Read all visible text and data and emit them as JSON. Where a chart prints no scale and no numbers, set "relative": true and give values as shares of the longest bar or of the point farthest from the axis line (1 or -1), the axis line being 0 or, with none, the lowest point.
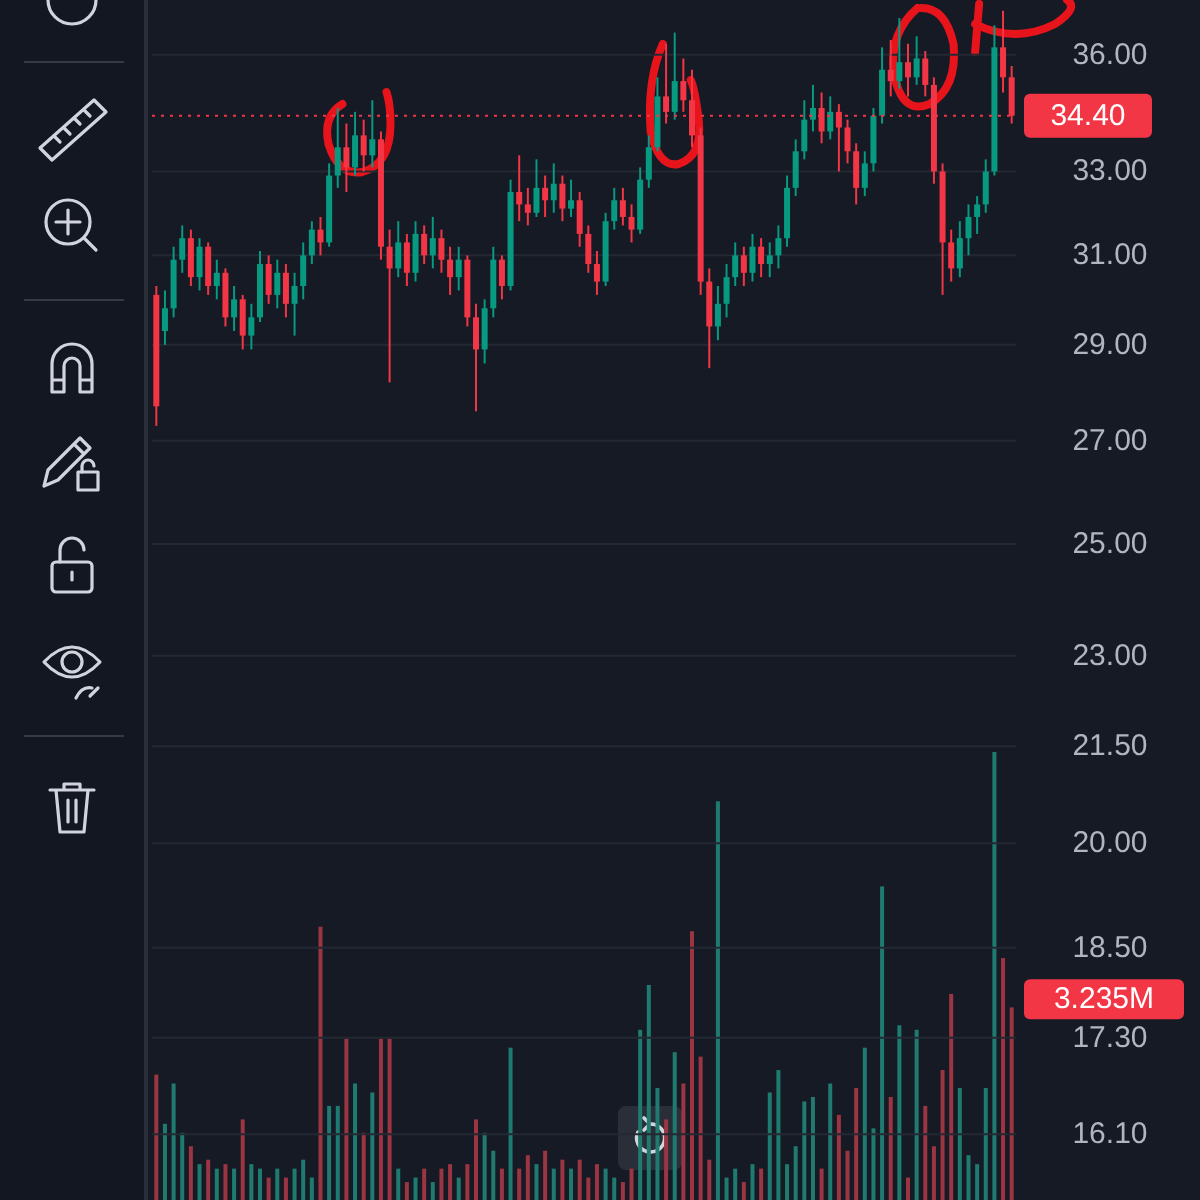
{
  "chart_data": [
    {
      "type": "candlestick",
      "log": true,
      "grid": "y",
      "tick_labels": "y",
      "categories": [
        null,
        null,
        null,
        null,
        null,
        null,
        null,
        null,
        null,
        null,
        null,
        null,
        null,
        null,
        null,
        null,
        null,
        null,
        null,
        null,
        null,
        null,
        null,
        null,
        null,
        null,
        null,
        null,
        null,
        null,
        null,
        null,
        null,
        null,
        null,
        null,
        null,
        null,
        null,
        null,
        null,
        null,
        null,
        null,
        null,
        null,
        null,
        null,
        null,
        null,
        null,
        null,
        null,
        null,
        null,
        null,
        null,
        null,
        null,
        null,
        null,
        null,
        null,
        null,
        null,
        null,
        null,
        null,
        null,
        null,
        null,
        null,
        null,
        null,
        null,
        null,
        null,
        null,
        null,
        null,
        null,
        null,
        null,
        null,
        null,
        null,
        null,
        null,
        null,
        null,
        null,
        null,
        null,
        null,
        null,
        null,
        null,
        null,
        null,
        null
      ],
      "ohlc": [
        [
          30.1,
          30.3,
          27.3,
          27.7
        ],
        [
          29.3,
          30.2,
          29.0,
          29.8
        ],
        [
          29.8,
          31.2,
          29.6,
          30.9
        ],
        [
          30.9,
          31.7,
          30.6,
          31.4
        ],
        [
          31.4,
          31.6,
          30.3,
          30.5
        ],
        [
          30.5,
          31.4,
          30.2,
          31.2
        ],
        [
          31.2,
          31.3,
          30.1,
          30.3
        ],
        [
          30.3,
          30.9,
          30.0,
          30.6
        ],
        [
          30.6,
          30.7,
          29.4,
          29.6
        ],
        [
          29.6,
          30.3,
          29.3,
          30.0
        ],
        [
          30.0,
          30.1,
          28.9,
          29.2
        ],
        [
          29.2,
          29.9,
          28.9,
          29.6
        ],
        [
          29.6,
          31.1,
          29.5,
          30.8
        ],
        [
          30.8,
          31.0,
          29.9,
          30.1
        ],
        [
          30.1,
          30.9,
          29.8,
          30.6
        ],
        [
          30.6,
          30.8,
          29.6,
          29.9
        ],
        [
          29.9,
          30.6,
          29.2,
          30.3
        ],
        [
          30.3,
          31.3,
          30.0,
          31.0
        ],
        [
          31.0,
          31.8,
          30.8,
          31.6
        ],
        [
          31.6,
          31.9,
          31.0,
          31.3
        ],
        [
          31.3,
          33.2,
          31.2,
          32.9
        ],
        [
          32.9,
          34.6,
          32.6,
          33.6
        ],
        [
          33.6,
          34.2,
          32.5,
          33.1
        ],
        [
          33.1,
          34.5,
          32.9,
          33.9
        ],
        [
          33.9,
          34.3,
          33.0,
          33.4
        ],
        [
          33.4,
          34.8,
          33.1,
          33.8
        ],
        [
          33.8,
          34.0,
          30.9,
          31.2
        ],
        [
          31.2,
          31.6,
          28.2,
          30.7
        ],
        [
          30.7,
          31.8,
          30.5,
          31.3
        ],
        [
          31.3,
          31.5,
          30.3,
          30.6
        ],
        [
          30.6,
          31.8,
          30.4,
          31.5
        ],
        [
          31.5,
          31.7,
          30.8,
          31.0
        ],
        [
          31.0,
          31.9,
          30.7,
          31.4
        ],
        [
          31.4,
          31.6,
          30.6,
          30.9
        ],
        [
          30.9,
          31.2,
          30.1,
          30.5
        ],
        [
          30.5,
          31.2,
          30.2,
          30.9
        ],
        [
          30.9,
          31.0,
          29.4,
          29.6
        ],
        [
          29.6,
          29.9,
          27.6,
          28.9
        ],
        [
          28.9,
          30.0,
          28.6,
          29.8
        ],
        [
          29.8,
          31.2,
          29.6,
          30.9
        ],
        [
          30.9,
          31.0,
          30.0,
          30.3
        ],
        [
          30.3,
          32.8,
          30.2,
          32.5
        ],
        [
          32.5,
          33.4,
          31.8,
          32.2
        ],
        [
          32.2,
          32.6,
          31.7,
          32.0
        ],
        [
          32.0,
          33.3,
          31.9,
          32.6
        ],
        [
          32.6,
          32.9,
          31.9,
          32.3
        ],
        [
          32.3,
          33.2,
          32.0,
          32.7
        ],
        [
          32.7,
          32.9,
          31.8,
          32.1
        ],
        [
          32.1,
          32.8,
          31.9,
          32.3
        ],
        [
          32.3,
          32.5,
          31.2,
          31.5
        ],
        [
          31.5,
          31.7,
          30.6,
          30.8
        ],
        [
          30.8,
          31.1,
          30.1,
          30.4
        ],
        [
          30.4,
          32.0,
          30.3,
          31.8
        ],
        [
          31.8,
          32.6,
          31.6,
          32.3
        ],
        [
          32.3,
          32.6,
          31.7,
          31.9
        ],
        [
          31.9,
          32.2,
          31.3,
          31.6
        ],
        [
          31.6,
          33.1,
          31.5,
          32.8
        ],
        [
          32.8,
          33.9,
          32.6,
          33.6
        ],
        [
          33.6,
          35.4,
          33.5,
          34.9
        ],
        [
          34.9,
          36.3,
          34.2,
          34.5
        ],
        [
          34.5,
          36.6,
          34.3,
          35.3
        ],
        [
          35.3,
          35.9,
          34.5,
          34.8
        ],
        [
          34.8,
          35.6,
          33.6,
          33.9
        ],
        [
          33.9,
          34.1,
          30.1,
          30.4
        ],
        [
          30.4,
          30.7,
          28.5,
          29.4
        ],
        [
          29.4,
          30.3,
          29.1,
          29.9
        ],
        [
          29.9,
          30.8,
          29.6,
          30.5
        ],
        [
          30.5,
          31.3,
          30.3,
          31.0
        ],
        [
          31.0,
          31.2,
          30.3,
          30.6
        ],
        [
          30.6,
          31.5,
          30.4,
          31.2
        ],
        [
          31.2,
          31.4,
          30.5,
          30.8
        ],
        [
          30.8,
          31.3,
          30.5,
          31.0
        ],
        [
          31.0,
          31.7,
          30.7,
          31.4
        ],
        [
          31.4,
          32.9,
          31.2,
          32.6
        ],
        [
          32.6,
          33.8,
          32.4,
          33.5
        ],
        [
          33.5,
          34.8,
          33.3,
          34.3
        ],
        [
          34.3,
          35.2,
          34.0,
          34.6
        ],
        [
          34.6,
          35.0,
          33.7,
          34.0
        ],
        [
          34.0,
          34.9,
          33.8,
          34.5
        ],
        [
          34.5,
          34.7,
          33.0,
          34.1
        ],
        [
          34.1,
          34.3,
          33.2,
          33.5
        ],
        [
          33.5,
          33.7,
          32.2,
          32.6
        ],
        [
          32.6,
          33.5,
          32.4,
          33.2
        ],
        [
          33.2,
          34.6,
          33.0,
          34.4
        ],
        [
          34.4,
          36.2,
          34.2,
          35.6
        ],
        [
          35.6,
          36.4,
          34.9,
          35.3
        ],
        [
          35.3,
          37.0,
          35.1,
          35.8
        ],
        [
          35.8,
          36.3,
          34.9,
          35.4
        ],
        [
          35.4,
          36.5,
          35.2,
          35.9
        ],
        [
          35.9,
          36.1,
          34.9,
          35.2
        ],
        [
          35.2,
          35.4,
          32.7,
          33.0
        ],
        [
          33.0,
          33.2,
          30.1,
          31.3
        ],
        [
          31.3,
          31.6,
          30.4,
          30.7
        ],
        [
          30.7,
          31.8,
          30.5,
          31.4
        ],
        [
          31.4,
          32.2,
          31.0,
          31.9
        ],
        [
          31.9,
          32.4,
          31.5,
          32.2
        ],
        [
          32.2,
          33.3,
          32.0,
          33.0
        ],
        [
          33.0,
          36.8,
          32.9,
          36.2
        ],
        [
          36.2,
          37.2,
          35.0,
          35.4
        ],
        [
          35.4,
          35.7,
          34.2,
          34.4
        ]
      ],
      "colors": [
        "#f23645",
        "#089981",
        "#089981",
        "#089981",
        "#f23645",
        "#089981",
        "#f23645",
        "#089981",
        "#f23645",
        "#089981",
        "#f23645",
        "#089981",
        "#089981",
        "#f23645",
        "#089981",
        "#f23645",
        "#089981",
        "#089981",
        "#089981",
        "#f23645",
        "#089981",
        "#089981",
        "#f23645",
        "#089981",
        "#f23645",
        "#089981",
        "#f23645",
        "#f23645",
        "#089981",
        "#f23645",
        "#089981",
        "#f23645",
        "#089981",
        "#f23645",
        "#f23645",
        "#089981",
        "#f23645",
        "#f23645",
        "#089981",
        "#089981",
        "#f23645",
        "#089981",
        "#f23645",
        "#f23645",
        "#089981",
        "#f23645",
        "#089981",
        "#f23645",
        "#089981",
        "#f23645",
        "#f23645",
        "#f23645",
        "#089981",
        "#089981",
        "#f23645",
        "#f23645",
        "#089981",
        "#089981",
        "#089981",
        "#f23645",
        "#089981",
        "#f23645",
        "#f23645",
        "#f23645",
        "#f23645",
        "#089981",
        "#089981",
        "#089981",
        "#f23645",
        "#089981",
        "#f23645",
        "#089981",
        "#089981",
        "#089981",
        "#089981",
        "#089981",
        "#089981",
        "#f23645",
        "#089981",
        "#f23645",
        "#f23645",
        "#f23645",
        "#089981",
        "#089981",
        "#089981",
        "#f23645",
        "#089981",
        "#f23645",
        "#089981",
        "#f23645",
        "#f23645",
        "#f23645",
        "#f23645",
        "#089981",
        "#089981",
        "#089981",
        "#089981",
        "#089981",
        "#f23645",
        "#f23645"
      ],
      "ylim": [
        15.33,
        37.5
      ],
      "yticks": [
        {
          "value": 36,
          "label": "36.00"
        },
        {
          "value": 33,
          "label": "33.00"
        },
        {
          "value": 31,
          "label": "31.00"
        },
        {
          "value": 29,
          "label": "29.00"
        },
        {
          "value": 27,
          "label": "27.00"
        },
        {
          "value": 25,
          "label": "25.00"
        },
        {
          "value": 23,
          "label": "23.00"
        },
        {
          "value": 21.5,
          "label": "21.50"
        },
        {
          "value": 20,
          "label": "20.00"
        },
        {
          "value": 18.5,
          "label": "18.50"
        },
        {
          "value": 17.3,
          "label": "17.30"
        },
        {
          "value": 16.1,
          "label": "16.10"
        }
      ],
      "ref_lines": [
        {
          "axis": "y",
          "value": 34.4,
          "label": "34.40",
          "color": "#f23645",
          "line_style": "dotted"
        }
      ]
    },
    {
      "type": "bar",
      "relative": true,
      "categories": [
        null,
        null,
        null,
        null,
        null,
        null,
        null,
        null,
        null,
        null,
        null,
        null,
        null,
        null,
        null,
        null,
        null,
        null,
        null,
        null,
        null,
        null,
        null,
        null,
        null,
        null,
        null,
        null,
        null,
        null,
        null,
        null,
        null,
        null,
        null,
        null,
        null,
        null,
        null,
        null,
        null,
        null,
        null,
        null,
        null,
        null,
        null,
        null,
        null,
        null,
        null,
        null,
        null,
        null,
        null,
        null,
        null,
        null,
        null,
        null,
        null,
        null,
        null,
        null,
        null,
        null,
        null,
        null,
        null,
        null,
        null,
        null,
        null,
        null,
        null,
        null,
        null,
        null,
        null,
        null,
        null,
        null,
        null,
        null,
        null,
        null,
        null,
        null,
        null,
        null,
        null,
        null,
        null,
        null,
        null,
        null,
        null,
        null,
        null,
        null
      ],
      "values": [
        0.28,
        0.17,
        0.26,
        0.15,
        0.12,
        0.08,
        0.09,
        0.07,
        0.08,
        0.07,
        0.18,
        0.08,
        0.07,
        0.05,
        0.07,
        0.05,
        0.07,
        0.09,
        0.05,
        0.61,
        0.21,
        0.21,
        0.36,
        0.26,
        0.15,
        0.24,
        0.36,
        0.36,
        0.07,
        0.04,
        0.05,
        0.07,
        0.04,
        0.07,
        0.08,
        0.05,
        0.08,
        0.18,
        0.15,
        0.11,
        0.07,
        0.34,
        0.07,
        0.1,
        0.08,
        0.11,
        0.07,
        0.09,
        0.07,
        0.09,
        0.05,
        0.08,
        0.07,
        0.05,
        0.04,
        0.07,
        0.38,
        0.48,
        0.25,
        0.18,
        0.33,
        0.26,
        0.6,
        0.32,
        0.09,
        0.89,
        0.05,
        0.07,
        0.04,
        0.08,
        0.07,
        0.24,
        0.29,
        0.08,
        0.12,
        0.22,
        0.23,
        0.07,
        0.26,
        0.19,
        0.11,
        0.25,
        0.34,
        0.16,
        0.7,
        0.23,
        0.39,
        0.05,
        0.38,
        0.21,
        0.12,
        0.29,
        0.46,
        0.25,
        0.1,
        0.08,
        0.25,
        1,
        0.54,
        0.43
      ],
      "colors": [
        "#9b3541",
        "#1f7a70",
        "#1f7a70",
        "#1f7a70",
        "#9b3541",
        "#1f7a70",
        "#9b3541",
        "#1f7a70",
        "#9b3541",
        "#1f7a70",
        "#9b3541",
        "#1f7a70",
        "#1f7a70",
        "#9b3541",
        "#1f7a70",
        "#9b3541",
        "#1f7a70",
        "#1f7a70",
        "#1f7a70",
        "#9b3541",
        "#1f7a70",
        "#1f7a70",
        "#9b3541",
        "#1f7a70",
        "#9b3541",
        "#1f7a70",
        "#9b3541",
        "#9b3541",
        "#1f7a70",
        "#9b3541",
        "#1f7a70",
        "#9b3541",
        "#1f7a70",
        "#9b3541",
        "#9b3541",
        "#1f7a70",
        "#9b3541",
        "#9b3541",
        "#1f7a70",
        "#1f7a70",
        "#9b3541",
        "#1f7a70",
        "#9b3541",
        "#9b3541",
        "#1f7a70",
        "#9b3541",
        "#1f7a70",
        "#9b3541",
        "#1f7a70",
        "#9b3541",
        "#9b3541",
        "#9b3541",
        "#1f7a70",
        "#1f7a70",
        "#9b3541",
        "#9b3541",
        "#1f7a70",
        "#1f7a70",
        "#1f7a70",
        "#9b3541",
        "#1f7a70",
        "#9b3541",
        "#9b3541",
        "#9b3541",
        "#9b3541",
        "#1f7a70",
        "#1f7a70",
        "#1f7a70",
        "#9b3541",
        "#1f7a70",
        "#9b3541",
        "#1f7a70",
        "#1f7a70",
        "#1f7a70",
        "#1f7a70",
        "#1f7a70",
        "#1f7a70",
        "#9b3541",
        "#1f7a70",
        "#9b3541",
        "#9b3541",
        "#9b3541",
        "#1f7a70",
        "#1f7a70",
        "#1f7a70",
        "#9b3541",
        "#1f7a70",
        "#9b3541",
        "#1f7a70",
        "#9b3541",
        "#9b3541",
        "#9b3541",
        "#9b3541",
        "#1f7a70",
        "#1f7a70",
        "#1f7a70",
        "#1f7a70",
        "#1f7a70",
        "#9b3541",
        "#9b3541"
      ],
      "annotations": [
        "3.235M"
      ]
    }
  ]
}
